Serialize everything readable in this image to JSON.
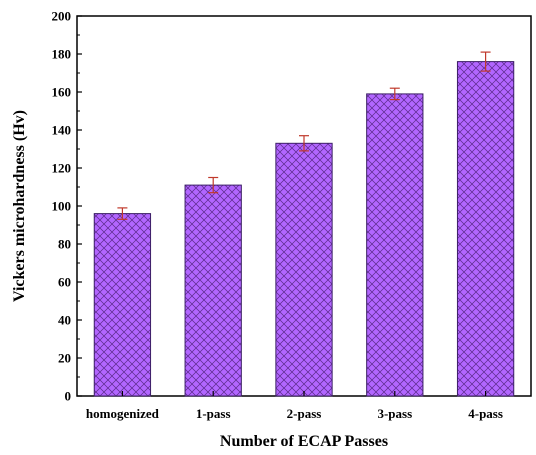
{
  "chart_data": {
    "type": "bar",
    "categories": [
      "homogenized",
      "1-pass",
      "2-pass",
      "3-pass",
      "4-pass"
    ],
    "values": [
      96,
      111,
      133,
      159,
      176
    ],
    "errors": [
      3,
      4,
      4,
      3,
      5
    ],
    "xlabel": "Number of ECAP Passes",
    "ylabel": "Vickers microhardness (Hv)",
    "ylim": [
      0,
      200
    ],
    "yticks": [
      0,
      20,
      40,
      60,
      80,
      100,
      120,
      140,
      160,
      180,
      200
    ],
    "grid": false,
    "legend": "none",
    "colors": {
      "bar_fill": "#b266ff",
      "bar_hatch": "#5a2a8a",
      "bar_edge": "#3c1f66",
      "error_bar": "#c0392b",
      "axis": "#000000"
    },
    "fill_pattern": "crosshatch"
  }
}
